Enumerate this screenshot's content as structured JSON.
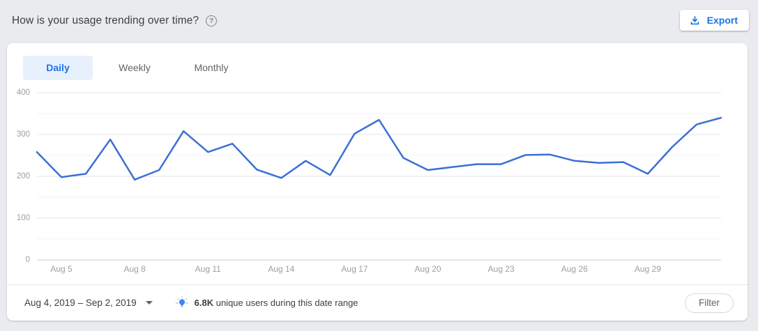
{
  "header": {
    "title": "How is your usage trending over time?",
    "help_glyph": "?",
    "export_label": "Export"
  },
  "tabs": [
    {
      "label": "Daily",
      "active": true
    },
    {
      "label": "Weekly",
      "active": false
    },
    {
      "label": "Monthly",
      "active": false
    }
  ],
  "chart_data": {
    "type": "line",
    "title": "How is your usage trending over time?",
    "x": [
      "Aug 4",
      "Aug 5",
      "Aug 6",
      "Aug 7",
      "Aug 8",
      "Aug 9",
      "Aug 10",
      "Aug 11",
      "Aug 12",
      "Aug 13",
      "Aug 14",
      "Aug 15",
      "Aug 16",
      "Aug 17",
      "Aug 18",
      "Aug 19",
      "Aug 20",
      "Aug 21",
      "Aug 22",
      "Aug 23",
      "Aug 24",
      "Aug 25",
      "Aug 26",
      "Aug 27",
      "Aug 28",
      "Aug 29",
      "Aug 30",
      "Aug 31",
      "Sep 1"
    ],
    "values": [
      258,
      198,
      206,
      288,
      192,
      215,
      308,
      258,
      278,
      216,
      196,
      237,
      203,
      302,
      335,
      244,
      215,
      222,
      229,
      229,
      251,
      252,
      237,
      232,
      234,
      206,
      270,
      324,
      340
    ],
    "x_tick_labels": [
      "Aug 5",
      "Aug 8",
      "Aug 11",
      "Aug 14",
      "Aug 17",
      "Aug 20",
      "Aug 23",
      "Aug 26",
      "Aug 29"
    ],
    "xlabel": "",
    "ylabel": "",
    "ylim": [
      0,
      400
    ],
    "y_ticks": [
      0,
      100,
      200,
      300,
      400
    ],
    "minor_gridlines": [
      50,
      150,
      250,
      350
    ],
    "grid": true,
    "legend_position": "none",
    "line_color": "#3b6fd6"
  },
  "footer": {
    "date_range": "Aug 4, 2019 – Sep 2, 2019",
    "insight_bold": "6.8K",
    "insight_text": " unique users during this date range",
    "filter_label": "Filter"
  },
  "colors": {
    "accent_blue": "#1a73e8",
    "chart_line": "#3b6fd6",
    "tab_active_bg": "#e8f0fe",
    "page_background": "#e9ebee",
    "axis_label_gray": "#9aa0a6"
  }
}
